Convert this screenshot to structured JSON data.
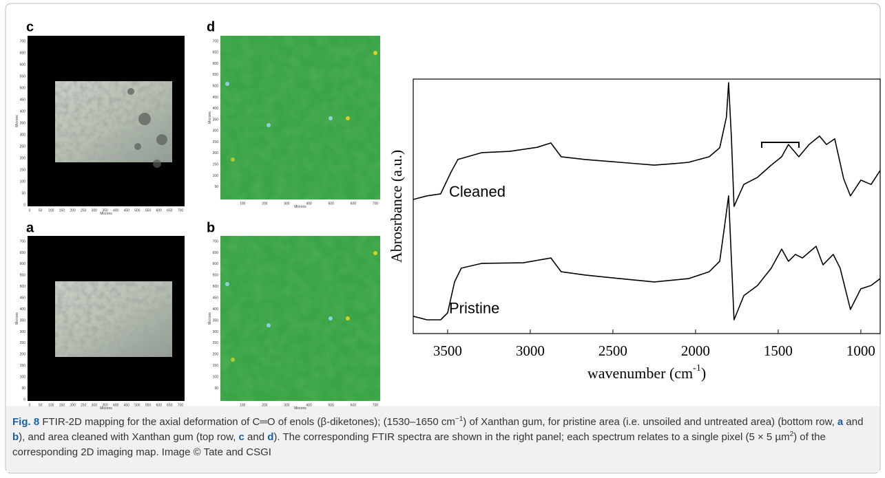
{
  "panels": [
    {
      "label": "c",
      "kind": "microscope",
      "ylabel": "Microns",
      "xlabel": "Microns",
      "yticks": [
        0,
        50,
        100,
        150,
        200,
        250,
        300,
        350,
        400,
        450,
        500,
        550,
        600,
        650,
        700
      ],
      "xticks": [
        0,
        50,
        100,
        150,
        200,
        250,
        300,
        350,
        400,
        450,
        500,
        550,
        600,
        650,
        700
      ]
    },
    {
      "label": "d",
      "kind": "map",
      "ylabel": "Microns",
      "xlabel": "Microns",
      "yticks": [
        50,
        100,
        150,
        200,
        250,
        300,
        350,
        400,
        450,
        500,
        550,
        600,
        650,
        700
      ],
      "xticks": [
        100,
        200,
        300,
        400,
        500,
        600,
        700
      ]
    },
    {
      "label": "a",
      "kind": "microscope",
      "ylabel": "Microns",
      "xlabel": "Microns",
      "yticks": [
        0,
        50,
        100,
        150,
        200,
        250,
        300,
        350,
        400,
        450,
        500,
        550,
        600,
        650,
        700
      ],
      "xticks": [
        0,
        50,
        100,
        150,
        200,
        250,
        300,
        350,
        400,
        450,
        500,
        550,
        600,
        650,
        700
      ]
    },
    {
      "label": "b",
      "kind": "map",
      "ylabel": "Microns",
      "xlabel": "Microns",
      "yticks": [
        50,
        100,
        150,
        200,
        250,
        300,
        350,
        400,
        450,
        500,
        550,
        600,
        650,
        700
      ],
      "xticks": [
        100,
        200,
        300,
        400,
        500,
        600,
        700
      ]
    }
  ],
  "chart_data": {
    "type": "line",
    "ylabel": "Abrosrbance (a.u.)",
    "xlabel": "wavenumber (cm",
    "xlabel_sup": "-1",
    "xlabel_end": ")",
    "xlim": [
      3708,
      883
    ],
    "ylim": [
      0,
      100
    ],
    "xticks": [
      3500,
      3000,
      2500,
      2000,
      1500,
      1000
    ],
    "series": [
      {
        "name": "Cleaned",
        "color": "#000000",
        "x": [
          3708,
          3625,
          3542,
          3479,
          3438,
          3292,
          3125,
          2958,
          2875,
          2813,
          2667,
          2458,
          2250,
          2125,
          2042,
          1917,
          1854,
          1813,
          1800,
          1783,
          1767,
          1708,
          1625,
          1542,
          1479,
          1438,
          1375,
          1313,
          1250,
          1208,
          1158,
          1104,
          1063,
          1000,
          938,
          883
        ],
        "values": [
          52.7,
          54.1,
          54.9,
          63.5,
          68.4,
          71.1,
          71.6,
          73.2,
          74.9,
          69.5,
          68.4,
          67.3,
          66.2,
          66.8,
          67.3,
          69.5,
          73.0,
          85.1,
          98.6,
          77.0,
          50.0,
          58.6,
          61.4,
          66.2,
          69.5,
          74.3,
          69.5,
          74.3,
          77.6,
          74.3,
          76.5,
          60.8,
          54.1,
          60.3,
          58.6,
          64.1
        ]
      },
      {
        "name": "Pristine",
        "color": "#000000",
        "x": [
          3708,
          3625,
          3542,
          3500,
          3458,
          3417,
          3292,
          3042,
          2875,
          2813,
          2667,
          2458,
          2250,
          2042,
          1917,
          1854,
          1825,
          1800,
          1779,
          1767,
          1708,
          1625,
          1542,
          1479,
          1438,
          1396,
          1354,
          1271,
          1229,
          1167,
          1125,
          1063,
          1000,
          938,
          883
        ],
        "values": [
          6.8,
          5.4,
          5.4,
          8.1,
          20.3,
          25.7,
          27.6,
          27.8,
          29.7,
          24.3,
          23.0,
          21.6,
          20.3,
          21.6,
          24.3,
          28.4,
          41.9,
          54.1,
          23.0,
          5.4,
          14.9,
          18.9,
          25.7,
          33.2,
          28.4,
          31.1,
          29.7,
          34.3,
          27.0,
          31.1,
          25.7,
          9.5,
          17.6,
          18.9,
          21.6
        ]
      }
    ]
  },
  "caption": [
    "Fig. 8",
    " FTIR-2D mapping for the axial deformation of C═O of enols (β-diketones); (1530–1650 cm",
    "−1",
    ") of Xanthan gum, for pristine area (i.e. unsoiled and untreated area) (bottom row, ",
    "a",
    " and ",
    "b",
    "), and area cleaned with Xanthan gum (top row, ",
    "c",
    " and ",
    "d",
    "). The corresponding FTIR spectra are shown in the right panel; each spectrum relates to a single pixel (5 × 5 µm",
    "2",
    ") of the corresponding 2D imaging map. Image © Tate and CSGI"
  ]
}
